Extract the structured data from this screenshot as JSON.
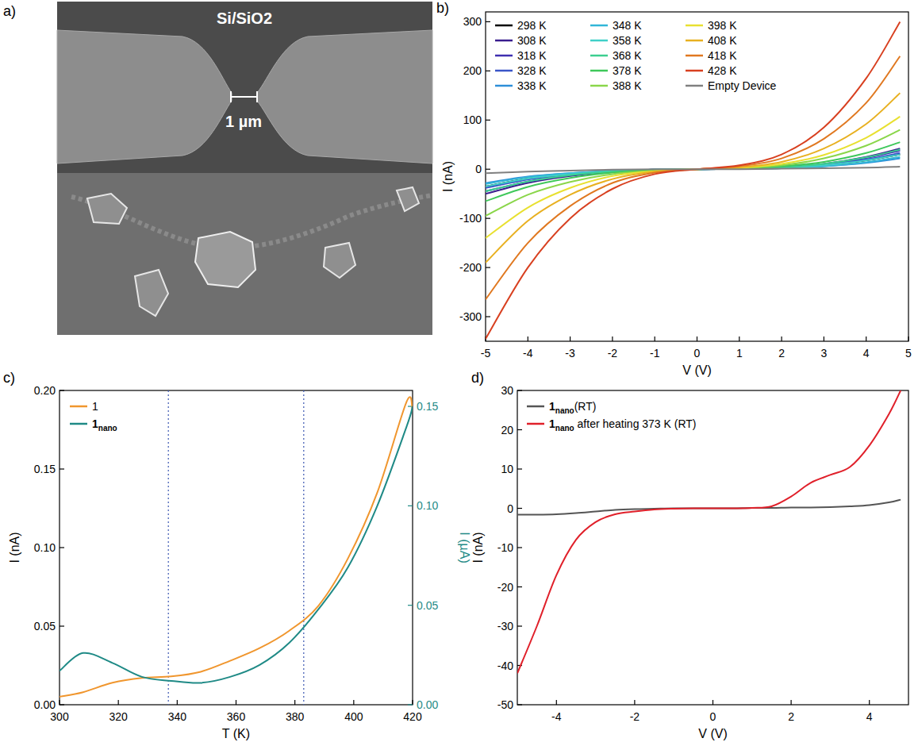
{
  "image_panel": {
    "panel_label": "a)",
    "substrate_label": "Si/SiO2",
    "scale_label": "1 µm"
  },
  "chart_data": [
    {
      "type": "line",
      "panel_label": "b)",
      "x_label": "V (V)",
      "y_label": "I (nA)",
      "x": [
        -5,
        -4,
        -3,
        -2,
        -1,
        0,
        1,
        2,
        3,
        4,
        4.8
      ],
      "xlim": [
        -5,
        5
      ],
      "xticks": [
        -5,
        -4,
        -3,
        -2,
        -1,
        0,
        1,
        2,
        3,
        4,
        5
      ],
      "ylim": [
        -350,
        320
      ],
      "yticks": [
        -300,
        -200,
        -100,
        0,
        100,
        200,
        300
      ],
      "legend": "upper left",
      "series": [
        {
          "name": "298 K",
          "color": "#000000",
          "values": [
            -35,
            -19,
            -10,
            -4,
            -1,
            0,
            1,
            3,
            8,
            18,
            30
          ]
        },
        {
          "name": "308 K",
          "color": "#3a1d8e",
          "values": [
            -50,
            -28,
            -14,
            -5,
            -1,
            0,
            1,
            4,
            11,
            25,
            42
          ]
        },
        {
          "name": "318 K",
          "color": "#3f2fb0",
          "values": [
            -45,
            -25,
            -12,
            -5,
            -1,
            0,
            1,
            4,
            10,
            23,
            38
          ]
        },
        {
          "name": "328 K",
          "color": "#3a55c8",
          "values": [
            -38,
            -21,
            -11,
            -4,
            -1,
            0,
            1,
            3,
            9,
            20,
            33
          ]
        },
        {
          "name": "338 K",
          "color": "#2d8fd8",
          "values": [
            -28,
            -15,
            -8,
            -3,
            -1,
            0,
            1,
            2,
            6,
            13,
            22
          ]
        },
        {
          "name": "348 K",
          "color": "#31b6d8",
          "values": [
            -30,
            -16,
            -8,
            -3,
            -1,
            0,
            1,
            2,
            6,
            14,
            25
          ]
        },
        {
          "name": "358 K",
          "color": "#40d0c8",
          "values": [
            -35,
            -19,
            -10,
            -4,
            -1,
            0,
            1,
            3,
            8,
            18,
            30
          ]
        },
        {
          "name": "368 K",
          "color": "#3ccf90",
          "values": [
            -45,
            -25,
            -12,
            -5,
            -1,
            0,
            1,
            4,
            11,
            24,
            40
          ]
        },
        {
          "name": "378 K",
          "color": "#3fc85a",
          "values": [
            -65,
            -36,
            -18,
            -7,
            -2,
            0,
            2,
            6,
            15,
            33,
            55
          ]
        },
        {
          "name": "388 K",
          "color": "#8ad64a",
          "values": [
            -95,
            -52,
            -26,
            -10,
            -3,
            0,
            2,
            8,
            22,
            48,
            80
          ]
        },
        {
          "name": "398 K",
          "color": "#e8e030",
          "values": [
            -140,
            -78,
            -38,
            -14,
            -4,
            0,
            3,
            11,
            29,
            64,
            107
          ]
        },
        {
          "name": "408 K",
          "color": "#e8b020",
          "values": [
            -190,
            -105,
            -52,
            -20,
            -5,
            0,
            4,
            15,
            42,
            92,
            155
          ]
        },
        {
          "name": "418 K",
          "color": "#e07820",
          "values": [
            -265,
            -150,
            -75,
            -28,
            -7,
            0,
            6,
            22,
            62,
            135,
            230
          ]
        },
        {
          "name": "428 K",
          "color": "#d84020",
          "values": [
            -345,
            -200,
            -100,
            -40,
            -10,
            0,
            8,
            30,
            85,
            185,
            300
          ]
        },
        {
          "name": "Empty Device",
          "color": "#808080",
          "values": [
            -8,
            -5,
            -3,
            -1,
            0,
            0,
            0,
            1,
            2,
            3,
            5
          ]
        }
      ]
    },
    {
      "type": "line",
      "panel_label": "c)",
      "x_label": "T (K)",
      "y_label": "I (nA)",
      "y2_label": "I (µA)",
      "x": [
        300,
        308,
        318,
        328,
        338,
        348,
        358,
        368,
        378,
        388,
        398,
        408,
        418,
        420
      ],
      "xlim": [
        300,
        420
      ],
      "xticks": [
        300,
        320,
        340,
        360,
        380,
        400,
        420
      ],
      "ylim": [
        0,
        0.2
      ],
      "yticks": [
        {
          "value": 0,
          "label": "0.00"
        },
        {
          "value": 0.05,
          "label": "0.05"
        },
        {
          "value": 0.1,
          "label": "0.10"
        },
        {
          "value": 0.15,
          "label": "0.15"
        },
        {
          "value": 0.2,
          "label": "0.20"
        }
      ],
      "y2lim": [
        0,
        0.158
      ],
      "y2ticks": [
        {
          "value": 0,
          "label": "0.00"
        },
        {
          "value": 0.05,
          "label": "0.05"
        },
        {
          "value": 0.1,
          "label": "0.10"
        },
        {
          "value": 0.15,
          "label": "0.15"
        }
      ],
      "reference_lines": [
        337,
        383
      ],
      "legend": "upper left",
      "series": [
        {
          "name": "1",
          "color": "#f0962e",
          "values": [
            0.005,
            0.008,
            0.014,
            0.017,
            0.018,
            0.021,
            0.028,
            0.036,
            0.047,
            0.063,
            0.093,
            0.135,
            0.193,
            0.187
          ]
        },
        {
          "name": "1nano",
          "color": "#1f8a86",
          "axis": "y2",
          "values": [
            0.017,
            0.026,
            0.021,
            0.014,
            0.012,
            0.011,
            0.014,
            0.02,
            0.031,
            0.048,
            0.069,
            0.1,
            0.14,
            0.15
          ]
        }
      ]
    },
    {
      "type": "line",
      "panel_label": "d)",
      "x_label": "V (V)",
      "y_label": "I (nA)",
      "x": [
        -5,
        -4.5,
        -4,
        -3.5,
        -3,
        -2.5,
        -2,
        -1.5,
        -1,
        -0.5,
        0,
        0.5,
        1,
        1.5,
        2,
        2.5,
        3,
        3.5,
        4,
        4.5,
        4.8
      ],
      "xlim": [
        -5,
        5
      ],
      "xticks": [
        -4,
        -2,
        0,
        2,
        4
      ],
      "ylim": [
        -50,
        30
      ],
      "yticks": [
        -50,
        -40,
        -30,
        -20,
        -10,
        0,
        10,
        20,
        30
      ],
      "legend": "upper left",
      "series": [
        {
          "name": "1nano(RT)",
          "color": "#555555",
          "values": [
            -1.6,
            -1.6,
            -1.5,
            -1.2,
            -0.8,
            -0.4,
            -0.2,
            -0.1,
            0,
            0,
            0,
            0,
            0.1,
            0.1,
            0.2,
            0.2,
            0.3,
            0.5,
            0.8,
            1.5,
            2.2
          ]
        },
        {
          "name": "1nano after heating 373 K (RT)",
          "color": "#e0202a",
          "values": [
            -42,
            -30,
            -17,
            -8,
            -3.5,
            -1.5,
            -0.8,
            -0.3,
            -0.1,
            0,
            0,
            0,
            0.1,
            0.5,
            3,
            6.5,
            8.5,
            10.5,
            16,
            24,
            30
          ]
        }
      ]
    }
  ]
}
